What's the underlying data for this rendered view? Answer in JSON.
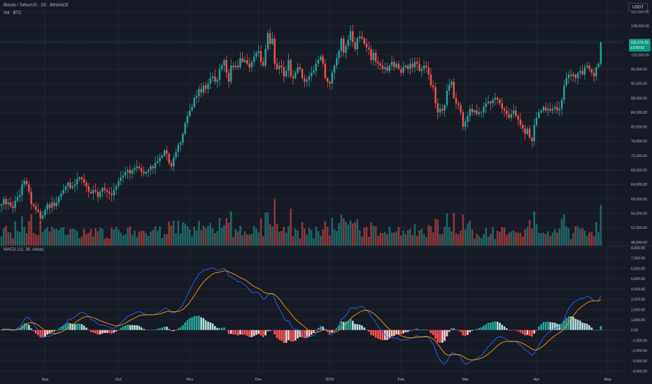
{
  "header": {
    "title": "Bitcoin / TetherUS · 1D · BINANCE",
    "vol_label": "Vol · BTC",
    "macd_label": "MACD (12, 26, close)",
    "currency": "USDT"
  },
  "price_label": {
    "price": "103,374.20",
    "countdown": "13:00:52"
  },
  "colors": {
    "background": "#161a25",
    "grid": "#222631",
    "text": "#b2b5be",
    "up": "#26a69a",
    "down": "#ef5350",
    "macd": "#2962ff",
    "signal": "#ff9800",
    "hist_up_strong": "#26a69a",
    "hist_up_weak": "#b2dfdb",
    "hist_down_strong": "#ff5252",
    "hist_down_weak": "#ffcdd2",
    "price_label_bg": "#089981"
  },
  "chart_data": {
    "type": "candlestick",
    "symbol": "BTCUSDT",
    "interval": "1D",
    "price_axis": {
      "ticks": [
        "112,000.00",
        "108,000.00",
        "104,000.00",
        "100,000.00",
        "96,000.00",
        "92,000.00",
        "88,000.00",
        "84,000.00",
        "80,000.00",
        "76,000.00",
        "72,000.00",
        "68,000.00",
        "64,000.00",
        "60,000.00",
        "56,000.00",
        "52,000.00",
        "48,000.00"
      ],
      "tick_values": [
        112000,
        108000,
        104000,
        100000,
        96000,
        92000,
        88000,
        84000,
        80000,
        76000,
        72000,
        68000,
        64000,
        60000,
        56000,
        52000,
        48000
      ],
      "range": [
        47000,
        114000
      ],
      "last_price": 103374.2
    },
    "macd_axis": {
      "ticks": [
        "8,000.00",
        "7,000.00",
        "6,000.00",
        "5,000.00",
        "4,000.00",
        "3,000.00",
        "2,000.00",
        "1,000.00",
        "0.00",
        "−1,000.00",
        "−2,000.00",
        "−3,000.00",
        "−4,000.00"
      ],
      "tick_values": [
        8000,
        7000,
        6000,
        5000,
        4000,
        3000,
        2000,
        1000,
        0,
        -1000,
        -2000,
        -3000,
        -4000
      ],
      "range": [
        -4300,
        8200
      ]
    },
    "time_axis": {
      "labels": [
        "Sep",
        "Oct",
        "Nov",
        "Dec",
        "2025",
        "Feb",
        "Mar",
        "Apr",
        "May"
      ]
    },
    "closes": [
      58500,
      60000,
      58500,
      59000,
      58000,
      57500,
      59500,
      60500,
      61000,
      64000,
      65000,
      64000,
      62000,
      58500,
      58000,
      57000,
      56500,
      54500,
      55500,
      57000,
      58500,
      57500,
      59000,
      58000,
      59000,
      60500,
      61500,
      62500,
      63500,
      64500,
      63000,
      63500,
      64000,
      65500,
      66000,
      65500,
      64500,
      63500,
      62000,
      61500,
      62500,
      62000,
      60500,
      62000,
      63000,
      62500,
      62000,
      61500,
      61000,
      62500,
      63500,
      65000,
      66000,
      66500,
      67500,
      68000,
      67000,
      68000,
      68500,
      69000,
      68500,
      67500,
      67000,
      67500,
      68000,
      69000,
      68500,
      70000,
      70500,
      71500,
      72000,
      73500,
      72500,
      70000,
      69000,
      71500,
      73000,
      75000,
      75500,
      78000,
      81000,
      83000,
      84500,
      85500,
      88000,
      88500,
      90500,
      89500,
      91500,
      90500,
      92000,
      93500,
      94000,
      92500,
      93000,
      96000,
      97000,
      98500,
      95000,
      92500,
      97000,
      96500,
      97000,
      96500,
      99000,
      98000,
      98500,
      97500,
      96500,
      98000,
      99500,
      100500,
      101000,
      98000,
      97000,
      101500,
      106000,
      103000,
      104500,
      97500,
      96000,
      97000,
      96500,
      94000,
      95500,
      98500,
      94000,
      93500,
      95000,
      96500,
      96000,
      93500,
      92500,
      93000,
      94000,
      95000,
      95500,
      97500,
      98500,
      99500,
      97500,
      93500,
      92500,
      92000,
      95000,
      97000,
      99000,
      101000,
      104500,
      100500,
      102500,
      104000,
      106500,
      103500,
      101500,
      104500,
      105000,
      104500,
      103000,
      102000,
      101500,
      98500,
      100500,
      98000,
      97500,
      97000,
      96000,
      96500,
      95500,
      97000,
      98000,
      96500,
      97500,
      96000,
      95000,
      96500,
      97000,
      96000,
      97500,
      96500,
      98000,
      97500,
      95500,
      96000,
      97000,
      96500,
      94500,
      91500,
      91000,
      86500,
      84000,
      85000,
      84500,
      86000,
      90000,
      91500,
      92500,
      88000,
      86500,
      86000,
      84000,
      80000,
      81500,
      83000,
      85000,
      84000,
      84500,
      83500,
      84000,
      84000,
      85500,
      86500,
      87000,
      86500,
      87500,
      88000,
      87500,
      86500,
      85000,
      84500,
      83500,
      82500,
      83500,
      84500,
      83000,
      82000,
      80500,
      79500,
      78000,
      79500,
      77000,
      76000,
      80500,
      82500,
      84000,
      84500,
      85500,
      84500,
      85000,
      84500,
      85000,
      85500,
      84500,
      85000,
      87500,
      91500,
      93500,
      94500,
      94000,
      94500,
      93500,
      95000,
      95500,
      94500,
      96500,
      97000,
      96000,
      95000,
      94000,
      96500,
      97500,
      103374
    ]
  }
}
